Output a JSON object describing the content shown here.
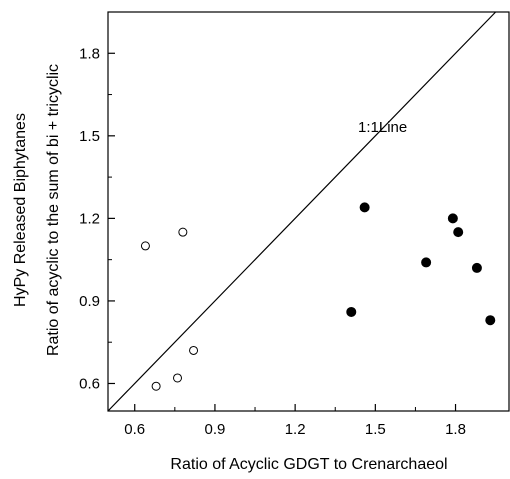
{
  "chart_data": {
    "type": "scatter",
    "title": "",
    "xlabel": "Ratio of Acyclic GDGT to Crenarchaeol",
    "ylabel_lines": [
      "HyPy Released Biphytanes",
      "Ratio of acyclic to the sum of bi + tricyclic"
    ],
    "xlim": [
      0.5,
      2.0
    ],
    "ylim": [
      0.5,
      1.95
    ],
    "x_ticks": [
      0.6,
      0.9,
      1.2,
      1.5,
      1.8
    ],
    "y_ticks": [
      0.6,
      0.9,
      1.2,
      1.5,
      1.8
    ],
    "x_tick_labels": [
      "0.6",
      "0.9",
      "1.2",
      "1.5",
      "1.8"
    ],
    "y_tick_labels": [
      "0.6",
      "0.9",
      "1.2",
      "1.5",
      "1.8"
    ],
    "grid": false,
    "reference_line": {
      "label": "1:1Line",
      "slope": 1,
      "intercept": 0
    },
    "series": [
      {
        "marker": "open-circle",
        "points": [
          {
            "x": 0.64,
            "y": 1.1
          },
          {
            "x": 0.78,
            "y": 1.15
          },
          {
            "x": 0.82,
            "y": 0.72
          },
          {
            "x": 0.76,
            "y": 0.62
          },
          {
            "x": 0.68,
            "y": 0.59
          }
        ]
      },
      {
        "marker": "filled-circle",
        "points": [
          {
            "x": 1.46,
            "y": 1.24
          },
          {
            "x": 1.41,
            "y": 0.86
          },
          {
            "x": 1.69,
            "y": 1.04
          },
          {
            "x": 1.79,
            "y": 1.2
          },
          {
            "x": 1.81,
            "y": 1.15
          },
          {
            "x": 1.88,
            "y": 1.02
          },
          {
            "x": 1.93,
            "y": 0.83
          }
        ]
      }
    ]
  }
}
